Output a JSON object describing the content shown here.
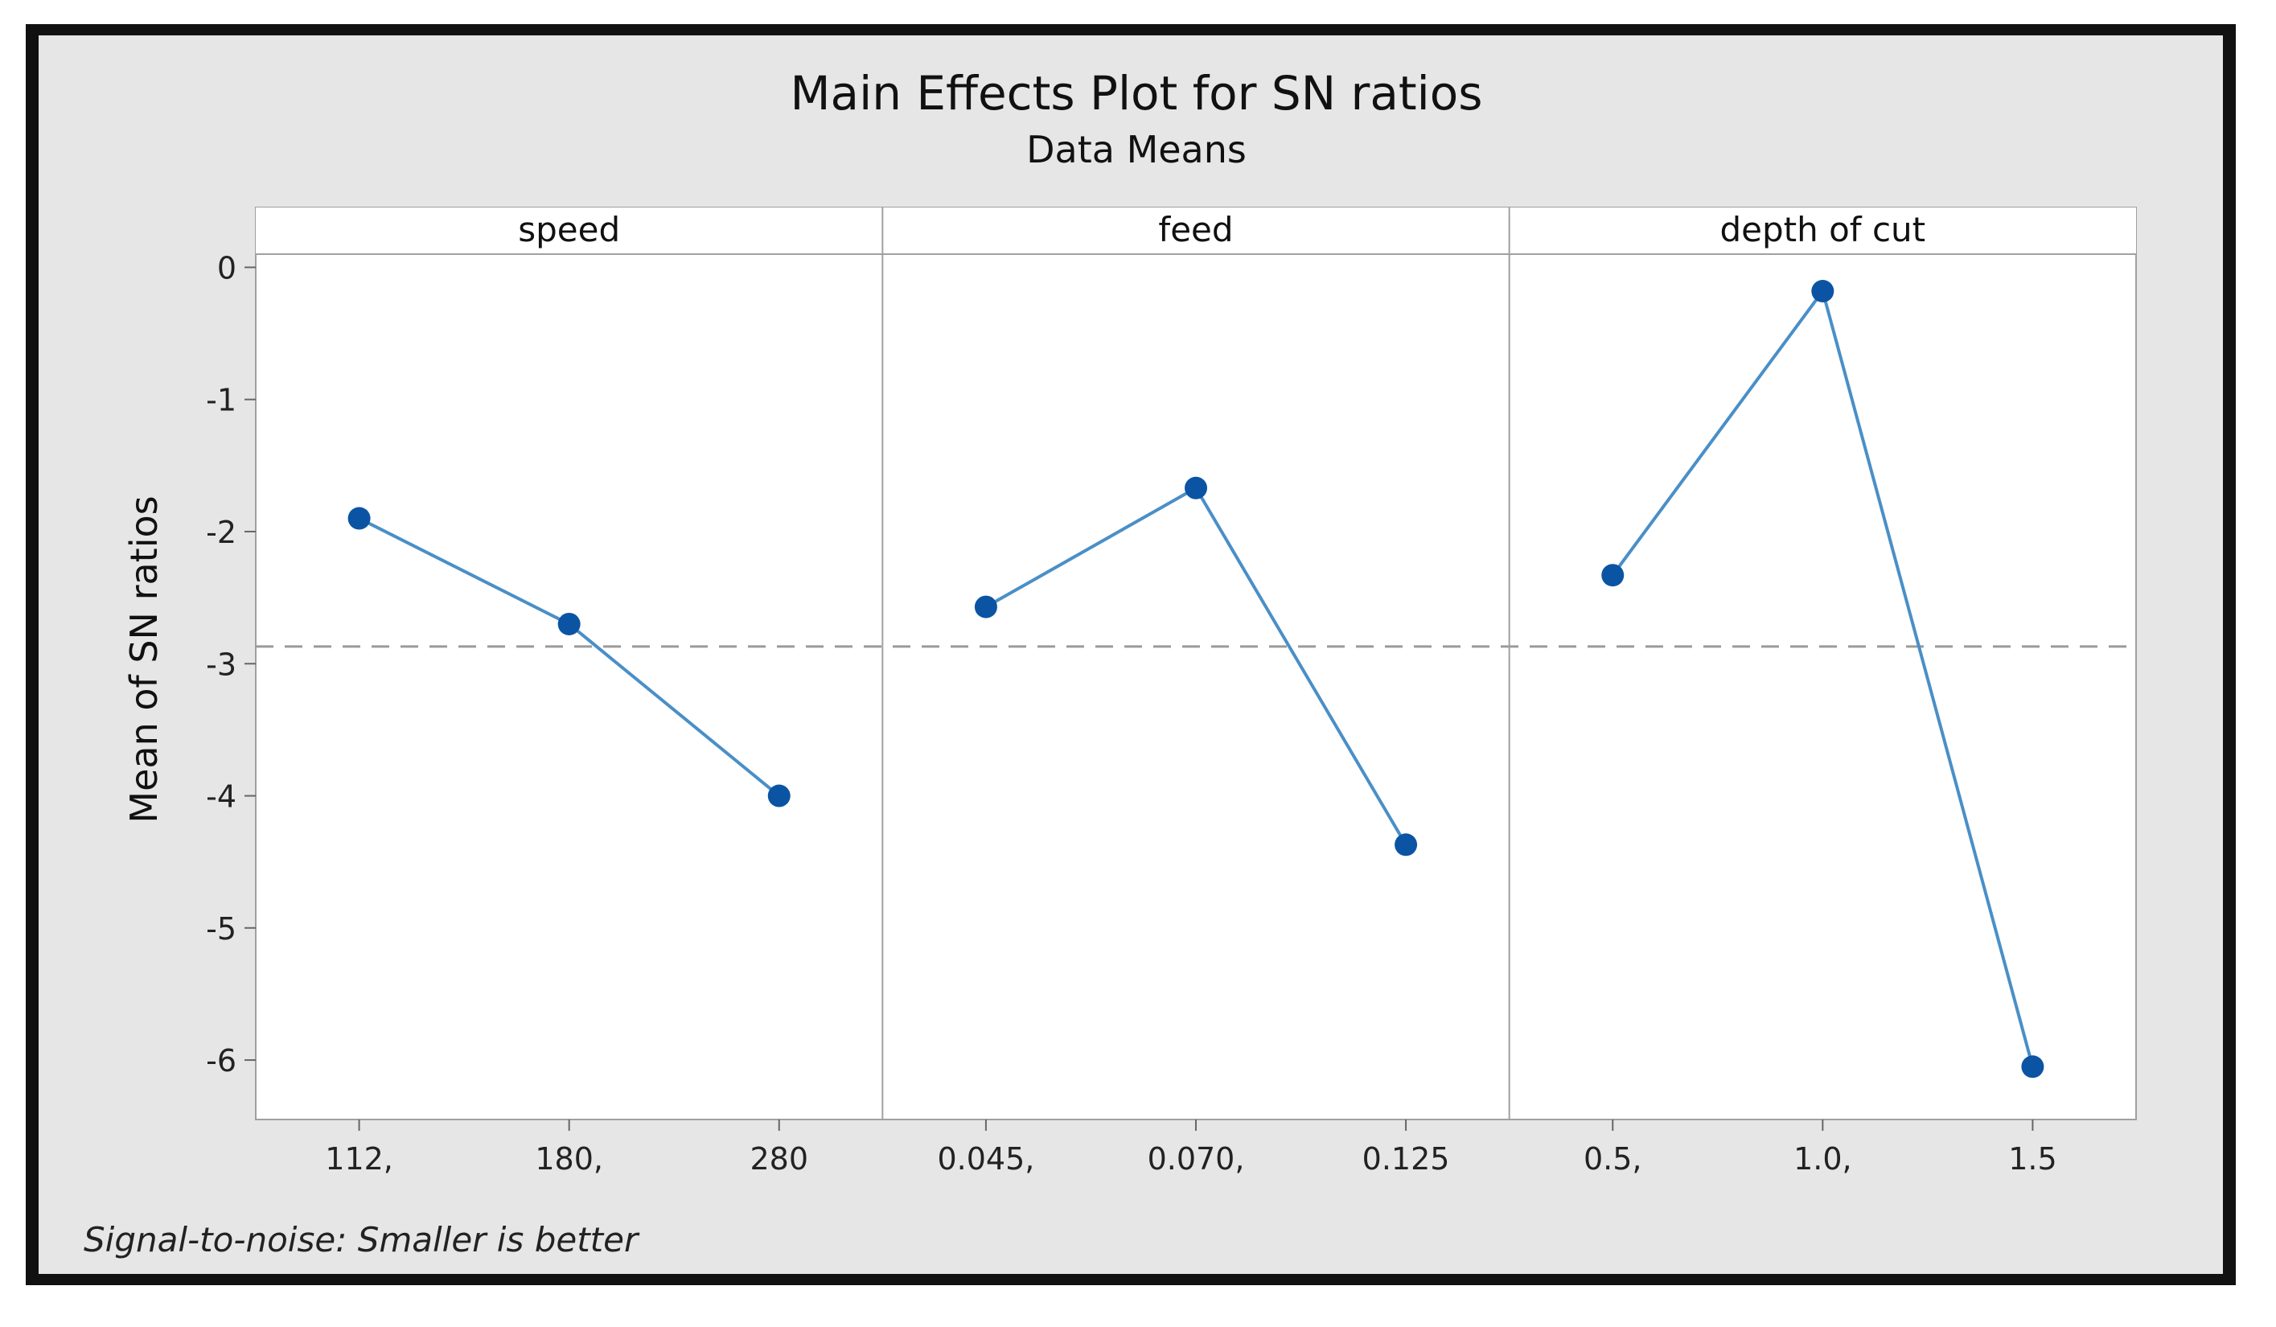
{
  "chart_data": {
    "type": "line",
    "title": "Main Effects Plot for SN ratios",
    "subtitle": "Data Means",
    "ylabel": "Mean of SN ratios",
    "ylim": [
      -6.45,
      0.1
    ],
    "yticks": [
      0,
      -1,
      -2,
      -3,
      -4,
      -5,
      -6
    ],
    "reference_line": -2.87,
    "footnote": "Signal-to-noise: Smaller is better",
    "panels": [
      {
        "name": "speed",
        "categories": [
          "112,",
          "180,",
          "280"
        ],
        "values": [
          -1.9,
          -2.7,
          -4.0
        ]
      },
      {
        "name": "feed",
        "categories": [
          "0.045,",
          "0.070,",
          "0.125"
        ],
        "values": [
          -2.57,
          -1.67,
          -4.37
        ]
      },
      {
        "name": "depth of cut",
        "categories": [
          "0.5,",
          "1.0,",
          "1.5"
        ],
        "values": [
          -2.33,
          -0.18,
          -6.05
        ]
      }
    ],
    "colors": {
      "line": "#4a8fc7",
      "marker": "#0b54a4",
      "reference": "#9a9a9a",
      "frame_bg": "#e6e6e6",
      "plot_bg": "#ffffff",
      "border": "#111111"
    }
  }
}
